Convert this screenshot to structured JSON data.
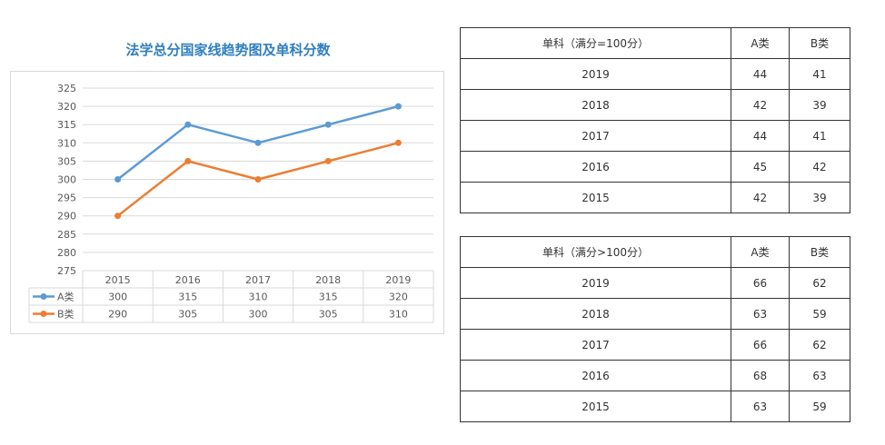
{
  "chart_data": {
    "type": "line",
    "title": "法学总分国家线趋势图及单科分数",
    "categories": [
      "2015",
      "2016",
      "2017",
      "2018",
      "2019"
    ],
    "series": [
      {
        "name": "A类",
        "values": [
          300,
          315,
          310,
          315,
          320
        ],
        "color": "#5b9bd5"
      },
      {
        "name": "B类",
        "values": [
          290,
          305,
          300,
          305,
          310
        ],
        "color": "#ed7d31"
      }
    ],
    "ylim": [
      275,
      325
    ],
    "yticks": [
      275,
      280,
      285,
      290,
      295,
      300,
      305,
      310,
      315,
      320,
      325
    ],
    "grid": true,
    "legend": "data-table-below"
  },
  "tables": [
    {
      "header": [
        "单科（满分=100分）",
        "A类",
        "B类"
      ],
      "rows": [
        [
          "2019",
          "44",
          "41"
        ],
        [
          "2018",
          "42",
          "39"
        ],
        [
          "2017",
          "44",
          "41"
        ],
        [
          "2016",
          "45",
          "42"
        ],
        [
          "2015",
          "42",
          "39"
        ]
      ]
    },
    {
      "header": [
        "单科（满分>100分）",
        "A类",
        "B类"
      ],
      "rows": [
        [
          "2019",
          "66",
          "62"
        ],
        [
          "2018",
          "63",
          "59"
        ],
        [
          "2017",
          "66",
          "62"
        ],
        [
          "2016",
          "68",
          "63"
        ],
        [
          "2015",
          "63",
          "59"
        ]
      ]
    }
  ]
}
